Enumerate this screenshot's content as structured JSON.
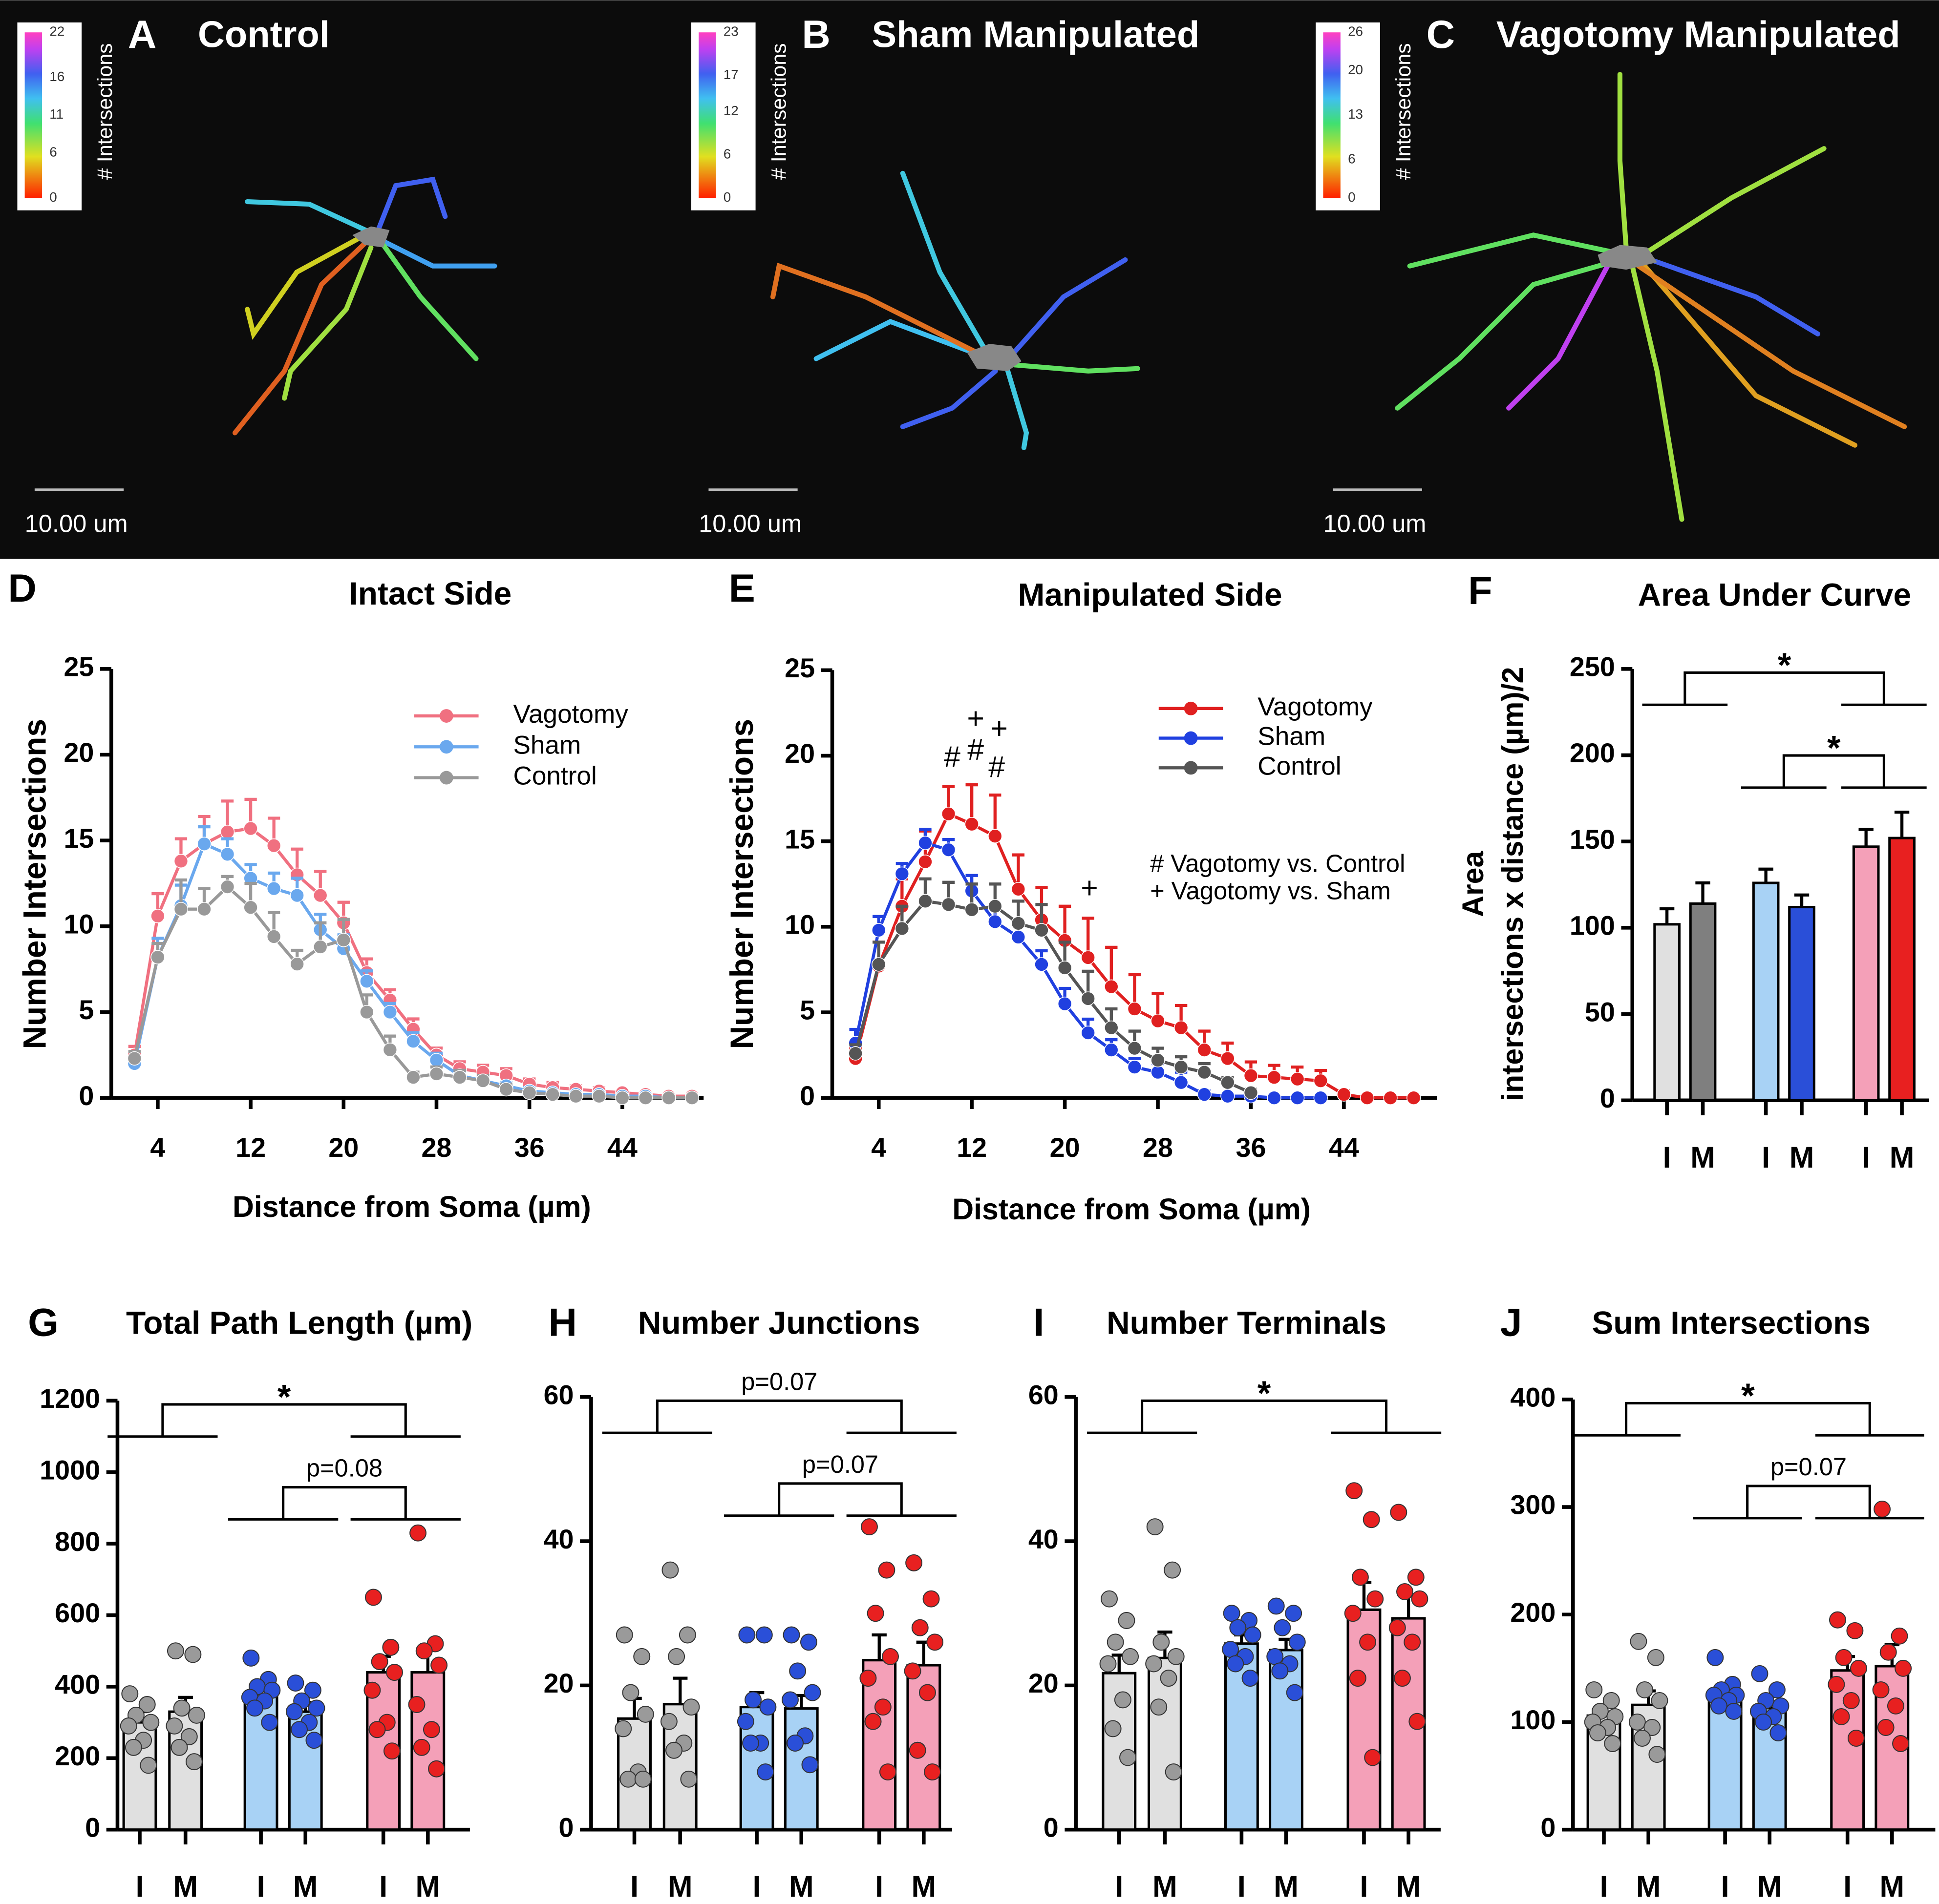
{
  "panels": [
    {
      "label": "A",
      "title": "Control",
      "colorbar_ticks": [
        22,
        16,
        11,
        6,
        0
      ],
      "colorbar_label": "# Intersections",
      "scale_label": "10.00 um"
    },
    {
      "label": "B",
      "title": "Sham Manipulated",
      "colorbar_ticks": [
        23,
        17,
        12,
        6,
        0
      ],
      "colorbar_label": "# Intersections",
      "scale_label": "10.00 um"
    },
    {
      "label": "C",
      "title": "Vagotomy Manipulated",
      "colorbar_ticks": [
        26,
        20,
        13,
        6,
        0
      ],
      "colorbar_label": "# Intersections",
      "scale_label": "10.00 um"
    }
  ],
  "chart_data": [
    {
      "type": "line",
      "label": "D",
      "title": "Intact Side",
      "xlabel": "Distance from Soma (µm)",
      "ylabel": "Number Intersections",
      "x": [
        2,
        4,
        6,
        8,
        10,
        12,
        14,
        16,
        18,
        20,
        22,
        24,
        26,
        28,
        30,
        32,
        34,
        36,
        38,
        40,
        42,
        44,
        46,
        48,
        50
      ],
      "xlim": [
        0,
        51
      ],
      "xticks": [
        4,
        12,
        20,
        28,
        36,
        44
      ],
      "ylim": [
        0,
        25
      ],
      "yticks": [
        0,
        5,
        10,
        15,
        20,
        25
      ],
      "legend": "upper right",
      "series": [
        {
          "name": "Vagotomy",
          "color": "#f07080",
          "values": [
            2.5,
            10.6,
            13.8,
            14.8,
            15.5,
            15.7,
            14.7,
            13.0,
            11.8,
            10.2,
            7.3,
            5.7,
            4.0,
            2.5,
            1.7,
            1.5,
            1.3,
            0.8,
            0.6,
            0.5,
            0.4,
            0.3,
            0.2,
            0.1,
            0.1
          ],
          "errors": [
            0.5,
            1.3,
            1.3,
            1.6,
            1.8,
            1.7,
            1.6,
            1.5,
            1.4,
            1.2,
            0.8,
            0.6,
            0.6,
            0.4,
            0.4,
            0.4,
            0.4,
            0.3,
            0.3,
            0.2,
            0.2,
            0.1,
            0.1,
            0.1,
            0.1
          ]
        },
        {
          "name": "Sham",
          "color": "#6aa8ee",
          "values": [
            2.0,
            8.2,
            11.2,
            14.8,
            14.2,
            12.8,
            12.2,
            11.8,
            9.8,
            8.7,
            6.8,
            5.0,
            3.3,
            2.2,
            1.3,
            1.0,
            0.7,
            0.4,
            0.3,
            0.2,
            0.2,
            0.1,
            0.1,
            0.0,
            0.0
          ],
          "errors": [
            0.4,
            1.1,
            1.2,
            1.0,
            0.9,
            0.8,
            0.9,
            1.0,
            0.9,
            0.8,
            0.6,
            0.5,
            0.5,
            0.4,
            0.3,
            0.3,
            0.2,
            0.2,
            0.1,
            0.1,
            0.1,
            0.1,
            0.1,
            0.0,
            0.0
          ]
        },
        {
          "name": "Control",
          "color": "#999999",
          "values": [
            2.3,
            8.2,
            11.0,
            11.0,
            12.3,
            11.1,
            9.4,
            7.8,
            8.8,
            9.2,
            5.0,
            2.8,
            1.2,
            1.4,
            1.2,
            1.0,
            0.5,
            0.3,
            0.2,
            0.1,
            0.1,
            0.0,
            0.0,
            0.0,
            0.0
          ],
          "errors": [
            0.4,
            0.8,
            1.7,
            1.2,
            0.6,
            1.4,
            1.4,
            0.8,
            1.4,
            1.2,
            1.0,
            0.8,
            0.3,
            0.4,
            0.4,
            0.3,
            0.3,
            0.2,
            0.1,
            0.1,
            0.1,
            0.0,
            0.0,
            0.0,
            0.0
          ]
        }
      ]
    },
    {
      "type": "line",
      "label": "E",
      "title": "Manipulated Side",
      "xlabel": "Distance from Soma (µm)",
      "ylabel": "Number Intersections",
      "x": [
        2,
        4,
        6,
        8,
        10,
        12,
        14,
        16,
        18,
        20,
        22,
        24,
        26,
        28,
        30,
        32,
        34,
        36,
        38,
        40,
        42,
        44,
        46,
        48,
        50
      ],
      "xlim": [
        0,
        52
      ],
      "xticks": [
        4,
        12,
        20,
        28,
        36,
        44
      ],
      "ylim": [
        0,
        25
      ],
      "yticks": [
        0,
        5,
        10,
        15,
        20,
        25
      ],
      "legend": "upper right",
      "annotations": [
        "#",
        "#",
        "#",
        "+",
        "+",
        "+",
        "# Vagotomy vs. Control",
        "+ Vagotomy vs. Sham"
      ],
      "series": [
        {
          "name": "Vagotomy",
          "color": "#e02020",
          "values": [
            2.3,
            7.7,
            11.2,
            13.8,
            16.6,
            16.0,
            15.3,
            12.2,
            10.4,
            9.2,
            8.2,
            6.5,
            5.2,
            4.5,
            4.1,
            2.8,
            2.3,
            1.3,
            1.2,
            1.1,
            1.0,
            0.2,
            0.0,
            0.0,
            0.0
          ],
          "errors": [
            0.6,
            1.4,
            1.6,
            1.8,
            1.6,
            2.3,
            2.4,
            2.0,
            1.9,
            2.0,
            2.3,
            2.3,
            2.0,
            1.6,
            1.3,
            1.1,
            0.9,
            0.8,
            0.7,
            0.7,
            0.6,
            0.2,
            0.0,
            0.0,
            0.0
          ]
        },
        {
          "name": "Sham",
          "color": "#2040e0",
          "values": [
            3.2,
            9.8,
            13.1,
            14.9,
            14.5,
            12.1,
            10.3,
            9.4,
            7.8,
            5.5,
            3.8,
            2.8,
            1.8,
            1.5,
            0.9,
            0.2,
            0.1,
            0.1,
            0.0,
            0.0,
            0.0,
            null,
            null,
            null,
            null
          ],
          "errors": [
            0.8,
            0.8,
            0.6,
            0.8,
            0.6,
            0.9,
            0.9,
            0.8,
            0.8,
            0.9,
            0.8,
            0.6,
            0.5,
            0.5,
            0.6,
            0.2,
            0.1,
            0.1,
            0.0,
            0.0,
            0.0,
            null,
            null,
            null,
            null
          ]
        },
        {
          "name": "Control",
          "color": "#555555",
          "values": [
            2.6,
            7.8,
            9.9,
            11.5,
            11.3,
            11.0,
            11.2,
            10.2,
            9.8,
            7.6,
            5.8,
            4.1,
            2.9,
            2.2,
            1.8,
            1.5,
            0.9,
            0.3,
            null,
            null,
            null,
            null,
            null,
            null,
            null
          ],
          "errors": [
            0.5,
            1.3,
            1.3,
            1.3,
            1.3,
            1.5,
            1.3,
            1.3,
            1.5,
            1.5,
            1.6,
            1.1,
            1.0,
            0.7,
            0.6,
            0.5,
            0.3,
            0.2,
            null,
            null,
            null,
            null,
            null,
            null,
            null
          ]
        }
      ]
    },
    {
      "type": "bar",
      "label": "F",
      "title": "Area Under Curve",
      "ylabel": [
        "Area",
        "intersections x distance (µm)/2"
      ],
      "categories": [
        "I",
        "M",
        "I",
        "M",
        "I",
        "M"
      ],
      "values": [
        102,
        114,
        126,
        112,
        147,
        152
      ],
      "errors": [
        9,
        12,
        8,
        7,
        10,
        15
      ],
      "colors": [
        "#e0e0e0",
        "#7f7f7f",
        "#a8d2f5",
        "#2a4fd8",
        "#f4a0b8",
        "#e82020"
      ],
      "ylim": [
        0,
        250
      ],
      "yticks": [
        0,
        50,
        100,
        150,
        200,
        250
      ],
      "significance": [
        "*",
        "*"
      ]
    },
    {
      "type": "bar",
      "label": "G",
      "title": "Total Path Length (µm)",
      "categories": [
        "I",
        "M",
        "I",
        "M",
        "I",
        "M"
      ],
      "values": [
        300,
        330,
        380,
        330,
        440,
        440
      ],
      "errors": [
        30,
        40,
        20,
        25,
        45,
        70
      ],
      "points": [
        [
          380,
          350,
          320,
          300,
          290,
          250,
          230,
          180
        ],
        [
          500,
          490,
          340,
          320,
          290,
          260,
          230,
          190
        ],
        [
          480,
          420,
          400,
          390,
          370,
          360,
          340,
          300
        ],
        [
          410,
          390,
          360,
          340,
          330,
          300,
          280,
          250
        ],
        [
          650,
          510,
          470,
          440,
          390,
          300,
          280,
          220
        ],
        [
          830,
          520,
          500,
          460,
          350,
          280,
          230,
          170
        ]
      ],
      "colors": [
        "#e0e0e0",
        "#e0e0e0",
        "#a8d2f5",
        "#a8d2f5",
        "#f4a0b8",
        "#f4a0b8"
      ],
      "point_colors": [
        "#9a9a9a",
        "#9a9a9a",
        "#2a4fd8",
        "#2a4fd8",
        "#e82020",
        "#e82020"
      ],
      "ylim": [
        0,
        1200
      ],
      "yticks": [
        0,
        200,
        400,
        600,
        800,
        1000,
        1200
      ],
      "significance": [
        "*",
        "p=0.08"
      ]
    },
    {
      "type": "bar",
      "label": "H",
      "title": "Number Junctions",
      "categories": [
        "I",
        "M",
        "I",
        "M",
        "I",
        "M"
      ],
      "values": [
        15.4,
        17.4,
        17.0,
        16.8,
        23.5,
        22.8
      ],
      "errors": [
        2.8,
        3.6,
        2.0,
        1.8,
        3.5,
        3.2
      ],
      "points": [
        [
          27,
          24,
          19,
          16,
          14,
          8,
          7,
          7
        ],
        [
          36,
          27,
          24,
          17,
          15,
          12,
          11,
          7
        ],
        [
          27,
          27,
          18,
          17,
          15,
          12,
          12,
          8
        ],
        [
          27,
          26,
          22,
          19,
          18,
          13,
          12,
          9
        ],
        [
          42,
          36,
          30,
          24,
          21,
          17,
          15,
          8
        ],
        [
          37,
          32,
          28,
          26,
          22,
          19,
          11,
          8
        ]
      ],
      "colors": [
        "#e0e0e0",
        "#e0e0e0",
        "#a8d2f5",
        "#a8d2f5",
        "#f4a0b8",
        "#f4a0b8"
      ],
      "point_colors": [
        "#9a9a9a",
        "#9a9a9a",
        "#2a4fd8",
        "#2a4fd8",
        "#e82020",
        "#e82020"
      ],
      "ylim": [
        0,
        60
      ],
      "yticks": [
        0,
        20,
        40,
        60
      ],
      "significance": [
        "p=0.07",
        "p=0.07"
      ]
    },
    {
      "type": "bar",
      "label": "I",
      "title": "Number Terminals",
      "categories": [
        "I",
        "M",
        "I",
        "M",
        "I",
        "M"
      ],
      "values": [
        21.7,
        23.8,
        25.8,
        24.9,
        30.5,
        29.3
      ],
      "errors": [
        2.5,
        3.6,
        1.2,
        1.5,
        3.8,
        3.2
      ],
      "points": [
        [
          32,
          29,
          26,
          24,
          23,
          18,
          14,
          10
        ],
        [
          42,
          36,
          26,
          24,
          23,
          21,
          17,
          8
        ],
        [
          30,
          29,
          28,
          27,
          25,
          24,
          23,
          21
        ],
        [
          31,
          30,
          28,
          26,
          24,
          23,
          22,
          19
        ],
        [
          47,
          43,
          35,
          32,
          30,
          26,
          21,
          10
        ],
        [
          44,
          35,
          33,
          32,
          28,
          26,
          21,
          15
        ]
      ],
      "colors": [
        "#e0e0e0",
        "#e0e0e0",
        "#a8d2f5",
        "#a8d2f5",
        "#f4a0b8",
        "#f4a0b8"
      ],
      "point_colors": [
        "#9a9a9a",
        "#9a9a9a",
        "#2a4fd8",
        "#2a4fd8",
        "#e82020",
        "#e82020"
      ],
      "ylim": [
        0,
        60
      ],
      "yticks": [
        0,
        20,
        40,
        60
      ],
      "significance": [
        "*"
      ]
    },
    {
      "type": "bar",
      "label": "J",
      "title": "Sum Intersections",
      "categories": [
        "I",
        "M",
        "I",
        "M",
        "I",
        "M"
      ],
      "values": [
        106,
        116,
        127,
        113,
        148,
        152
      ],
      "errors": [
        8,
        13,
        6,
        6,
        13,
        20
      ],
      "points": [
        [
          130,
          120,
          110,
          105,
          100,
          95,
          90,
          80
        ],
        [
          175,
          160,
          130,
          120,
          100,
          95,
          85,
          70
        ],
        [
          160,
          135,
          130,
          125,
          125,
          120,
          115,
          110
        ],
        [
          145,
          130,
          120,
          115,
          110,
          105,
          100,
          90
        ],
        [
          195,
          185,
          160,
          150,
          135,
          120,
          105,
          85
        ],
        [
          298,
          180,
          165,
          150,
          130,
          115,
          95,
          80
        ]
      ],
      "colors": [
        "#e0e0e0",
        "#e0e0e0",
        "#a8d2f5",
        "#a8d2f5",
        "#f4a0b8",
        "#f4a0b8"
      ],
      "point_colors": [
        "#9a9a9a",
        "#9a9a9a",
        "#2a4fd8",
        "#2a4fd8",
        "#e82020",
        "#e82020"
      ],
      "ylim": [
        0,
        400
      ],
      "yticks": [
        0,
        100,
        200,
        300,
        400
      ],
      "significance": [
        "*",
        "p=0.07"
      ]
    }
  ]
}
